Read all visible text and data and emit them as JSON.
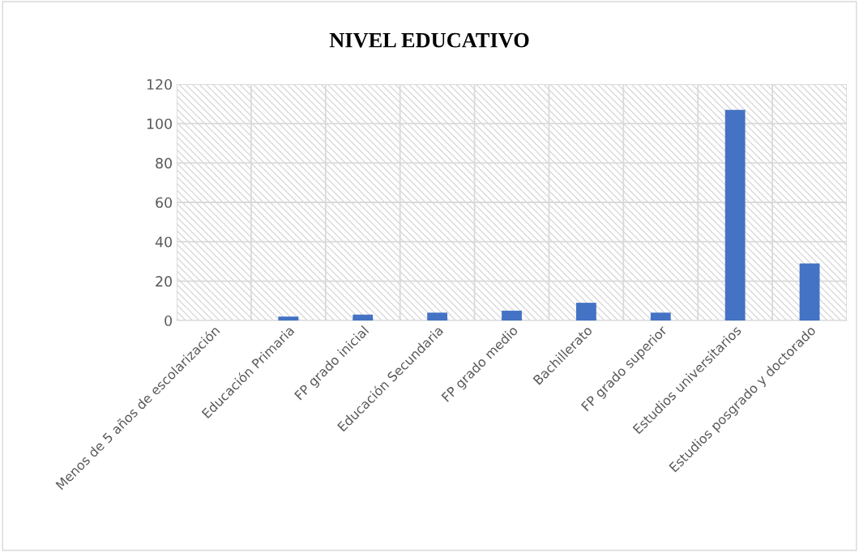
{
  "chart_data": {
    "type": "bar",
    "title": "NIVEL EDUCATIVO",
    "categories": [
      "Menos de 5 años de escolarización",
      "Educación Primaria",
      "FP grado inicial",
      "Educación Secundaria",
      "FP grado medio",
      "Bachillerato",
      "FP grado superior",
      "Estudios universitarios",
      "Estudios posgrado y doctorado"
    ],
    "values": [
      0,
      2,
      3,
      4,
      5,
      9,
      4,
      107,
      29
    ],
    "color": "#4472c4",
    "ylim": [
      0,
      120
    ],
    "yticks": [
      0,
      20,
      40,
      60,
      80,
      100,
      120
    ],
    "grid": true
  }
}
